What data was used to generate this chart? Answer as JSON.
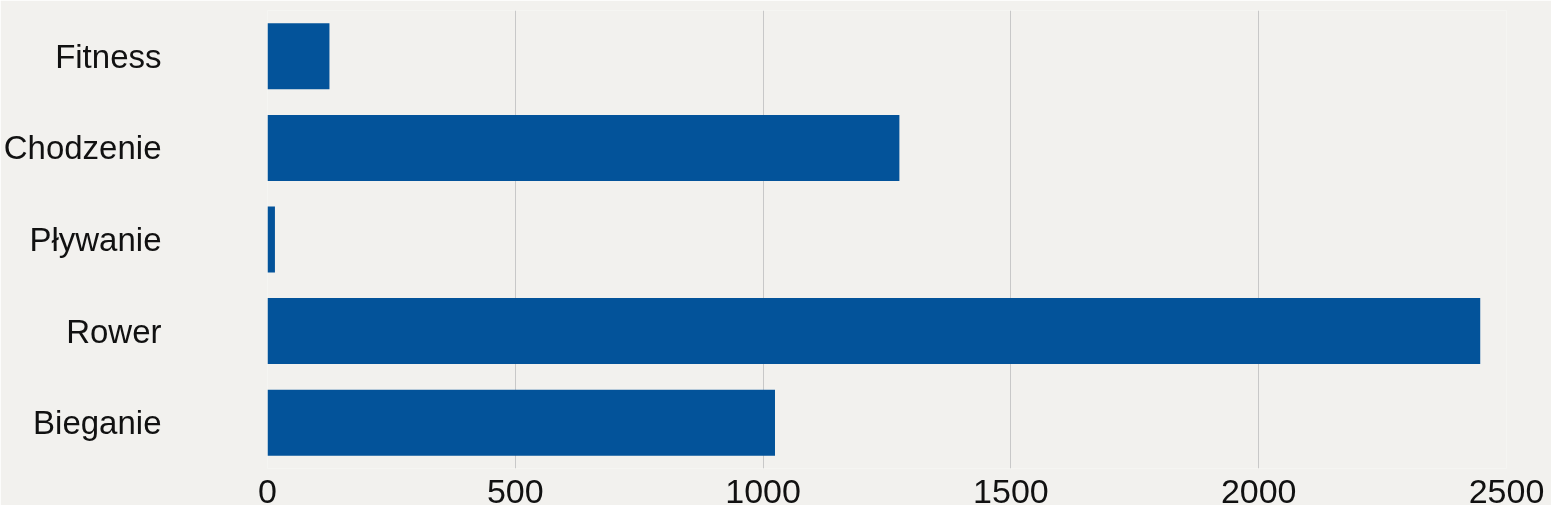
{
  "chart_data": {
    "type": "bar",
    "orientation": "horizontal",
    "categories": [
      "Fitness",
      "Chodzenie",
      "Pływanie",
      "Rower",
      "Bieganie"
    ],
    "values": [
      125,
      1275,
      15,
      2447,
      1024
    ],
    "color": "#03539a",
    "xlim": [
      0,
      2500
    ],
    "xticks": [
      0,
      500,
      1000,
      1500,
      2000,
      2500
    ],
    "grid": "x"
  }
}
